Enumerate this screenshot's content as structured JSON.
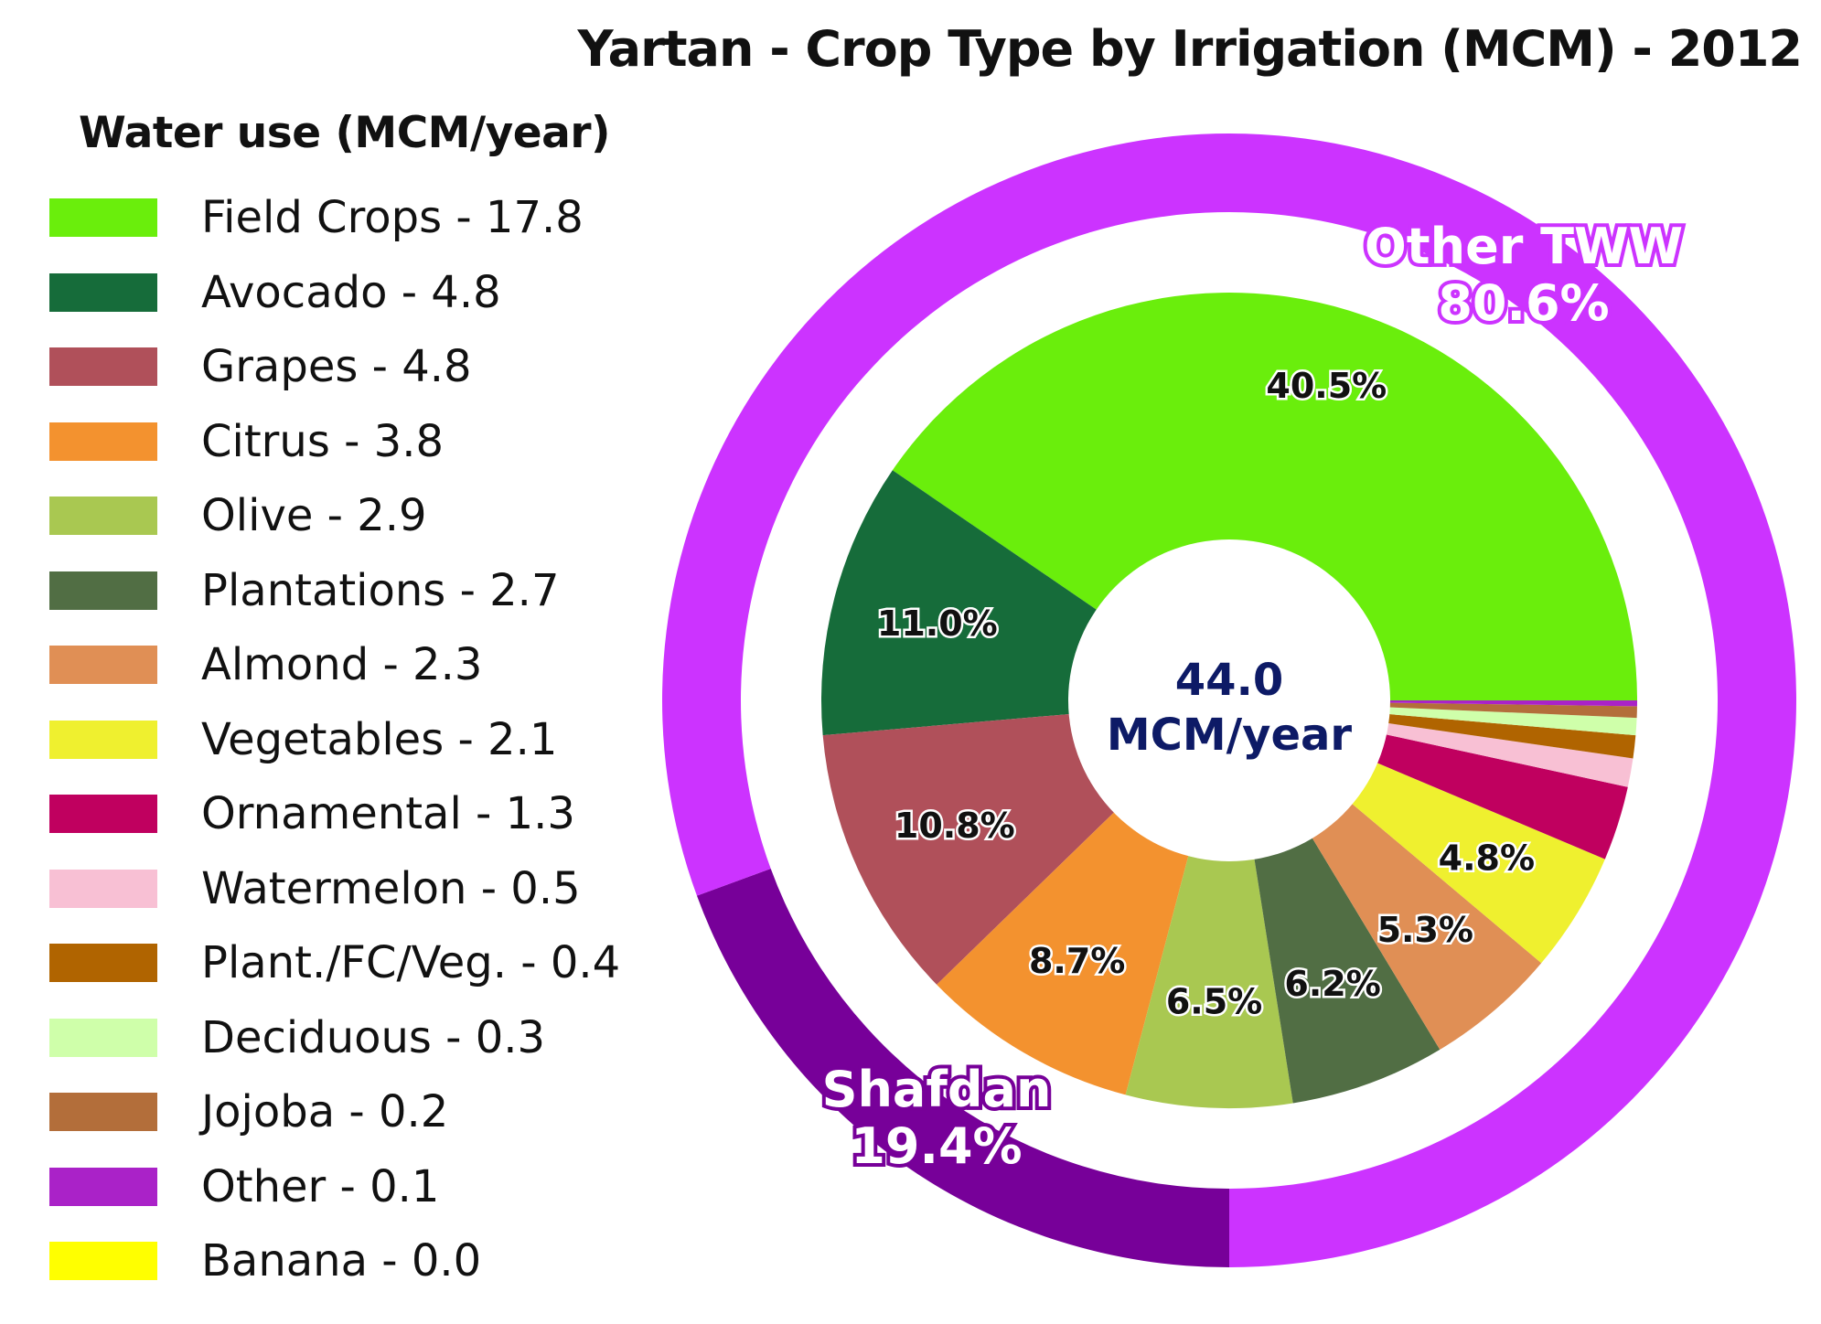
{
  "chart_data": {
    "type": "pie",
    "title": "Yartan - Crop Type by Irrigation (MCM) - 2012",
    "legend_title": "Water use (MCM/year)",
    "legend_position": "left",
    "center_label": {
      "value": "44.0",
      "unit": "MCM/year"
    },
    "inner_series": {
      "name": "Crop type",
      "slices": [
        {
          "label": "Field Crops - 17.8",
          "value": 17.8,
          "percent_label": "40.5%",
          "color": "#6aee0c"
        },
        {
          "label": "Avocado - 4.8",
          "value": 4.8,
          "percent_label": "11.0%",
          "color": "#166c3a"
        },
        {
          "label": "Grapes - 4.8",
          "value": 4.8,
          "percent_label": "10.8%",
          "color": "#b0505a"
        },
        {
          "label": "Citrus - 3.8",
          "value": 3.8,
          "percent_label": "8.7%",
          "color": "#f3922f"
        },
        {
          "label": "Olive - 2.9",
          "value": 2.9,
          "percent_label": "6.5%",
          "color": "#a9c851"
        },
        {
          "label": "Plantations - 2.7",
          "value": 2.7,
          "percent_label": "6.2%",
          "color": "#516e44"
        },
        {
          "label": "Almond - 2.3",
          "value": 2.3,
          "percent_label": "5.3%",
          "color": "#e08f55"
        },
        {
          "label": "Vegetables - 2.1",
          "value": 2.1,
          "percent_label": "4.8%",
          "color": "#eff02f"
        },
        {
          "label": "Ornamental - 1.3",
          "value": 1.3,
          "percent_label": "",
          "color": "#c0005f"
        },
        {
          "label": "Watermelon - 0.5",
          "value": 0.5,
          "percent_label": "",
          "color": "#f8c0d4"
        },
        {
          "label": "Plant./FC/Veg. - 0.4",
          "value": 0.4,
          "percent_label": "",
          "color": "#b06400"
        },
        {
          "label": "Deciduous - 0.3",
          "value": 0.3,
          "percent_label": "",
          "color": "#cfffaa"
        },
        {
          "label": "Jojoba - 0.2",
          "value": 0.2,
          "percent_label": "",
          "color": "#b36e3a"
        },
        {
          "label": "Other - 0.1",
          "value": 0.1,
          "percent_label": "",
          "color": "#aa22c8"
        },
        {
          "label": "Banana - 0.0",
          "value": 0.0,
          "percent_label": "",
          "color": "#ffff00"
        }
      ]
    },
    "outer_series": {
      "name": "Irrigation source",
      "slices": [
        {
          "label": "Other TWW",
          "percent_label": "80.6%",
          "value": 80.6,
          "color": "#cc33ff"
        },
        {
          "label": "Shafdan",
          "percent_label": "19.4%",
          "value": 19.4,
          "color": "#770099"
        }
      ]
    }
  }
}
